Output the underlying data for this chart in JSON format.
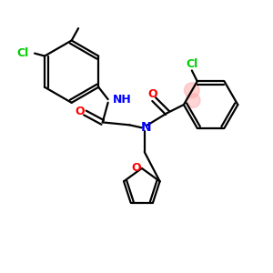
{
  "bg_color": "#ffffff",
  "bond_color": "#000000",
  "n_color": "#0000ff",
  "o_color": "#ff0000",
  "cl_color": "#00cc00",
  "highlight_color": "#ffaaaa",
  "line_width": 1.6,
  "fig_size": [
    3.0,
    3.0
  ],
  "dpi": 100,
  "xlim": [
    0,
    10
  ],
  "ylim": [
    0,
    10
  ]
}
